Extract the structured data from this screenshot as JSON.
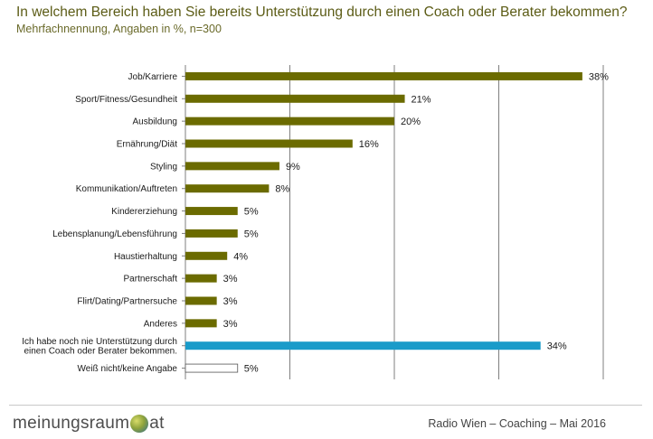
{
  "title": "In welchem Bereich haben Sie bereits Unterstützung durch einen Coach oder Berater bekommen?",
  "subtitle": "Mehrfachnennung, Angaben in %, n=300",
  "colors": {
    "primary": "#6b6b00",
    "highlight": "#1a9bc9",
    "other": "#ffffff",
    "grid": "#7f7f7f",
    "title": "#5c5c16"
  },
  "chart_data": {
    "type": "bar",
    "orientation": "horizontal",
    "categories": [
      "Job/Karriere",
      "Sport/Fitness/Gesundheit",
      "Ausbildung",
      "Ernährung/Diät",
      "Styling",
      "Kommunikation/Auftreten",
      "Kindererziehung",
      "Lebensplanung/Lebensführung",
      "Haustierhaltung",
      "Partnerschaft",
      "Flirt/Dating/Partnersuche",
      "Anderes",
      "Ich habe noch nie Unterstützung durch\neinen Coach oder Berater bekommen.",
      "Weiß nicht/keine Angabe"
    ],
    "values": [
      38,
      21,
      20,
      16,
      9,
      8,
      5,
      5,
      4,
      3,
      3,
      3,
      34,
      5
    ],
    "labels": [
      "38%",
      "21%",
      "20%",
      "16%",
      "9%",
      "8%",
      "5%",
      "5%",
      "4%",
      "3%",
      "3%",
      "3%",
      "34%",
      "5%"
    ],
    "bar_styles": [
      "primary",
      "primary",
      "primary",
      "primary",
      "primary",
      "primary",
      "primary",
      "primary",
      "primary",
      "primary",
      "primary",
      "primary",
      "highlight",
      "other"
    ],
    "xlim": [
      0,
      40
    ],
    "gridlines_at": [
      0,
      10,
      20,
      30,
      40
    ],
    "grid": true,
    "legend": false
  },
  "footer": {
    "logo_left": "meinungsraum",
    "logo_right": "at",
    "source": "Radio Wien – Coaching – Mai 2016"
  }
}
